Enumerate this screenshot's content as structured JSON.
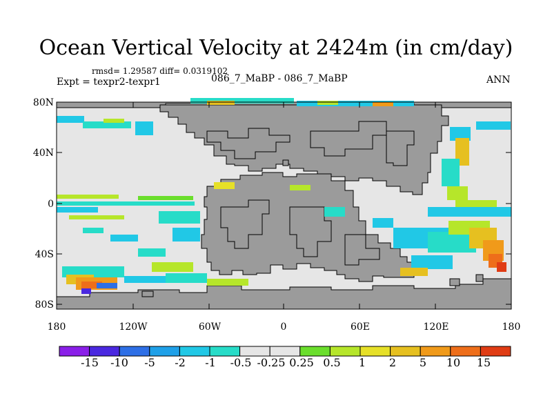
{
  "title": "Ocean Vertical Velocity at 2424m (in cm/day)",
  "stats": "rmsd= 1.29587  diff= 0.0319102",
  "expt": "Expt = texpr2-texpr1",
  "case": "086_7_MaBP - 086_7_MaBP",
  "season": "ANN",
  "lat_labels": [
    "80N",
    "40N",
    "0",
    "40S",
    "80S"
  ],
  "lon_labels": [
    "180",
    "120W",
    "60W",
    "0",
    "60E",
    "120E",
    "180"
  ],
  "colorbar": {
    "labels": [
      "-15",
      "-10",
      "-5",
      "-2",
      "-1",
      "-0.5",
      "-0.25",
      "0.25",
      "0.5",
      "1",
      "2",
      "5",
      "10",
      "15"
    ],
    "colors": [
      "#8a1fe8",
      "#4a28e0",
      "#2e6fe6",
      "#1fa0e8",
      "#21c8e6",
      "#27dcc8",
      "#e6e6e6",
      "#6ade2c",
      "#b6e62a",
      "#e6e028",
      "#e6c020",
      "#f09a1a",
      "#ee6e1a",
      "#e03c14"
    ]
  },
  "land_color": "#9b9b9b",
  "ocean_zero_color": "#e6e6e6"
}
